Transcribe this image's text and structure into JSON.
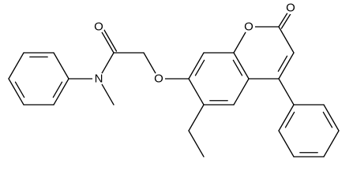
{
  "atoms": [
    {
      "label": "O"
    },
    {
      "label": "N"
    },
    {
      "label": "O"
    },
    {
      "label": "O"
    },
    {
      "label": "O"
    }
  ]
}
